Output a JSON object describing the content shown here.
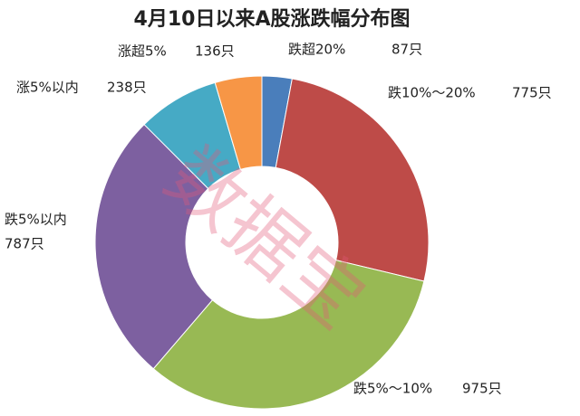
{
  "chart_data": {
    "type": "donut",
    "title": "4月10日以来A股涨跌幅分布图",
    "categories": [
      "跌超20%",
      "跌10%～20%",
      "跌5%～10%",
      "跌5%以内",
      "涨5%以内",
      "涨超5%"
    ],
    "values": [
      87,
      775,
      975,
      787,
      238,
      136
    ],
    "value_labels": [
      "87只",
      "775只",
      "975只",
      "787只",
      "238只",
      "136只"
    ],
    "colors": [
      "#4a7ebb",
      "#be4b48",
      "#98b954",
      "#7d60a0",
      "#46aac5",
      "#f79646"
    ],
    "watermark": "数据宝"
  }
}
